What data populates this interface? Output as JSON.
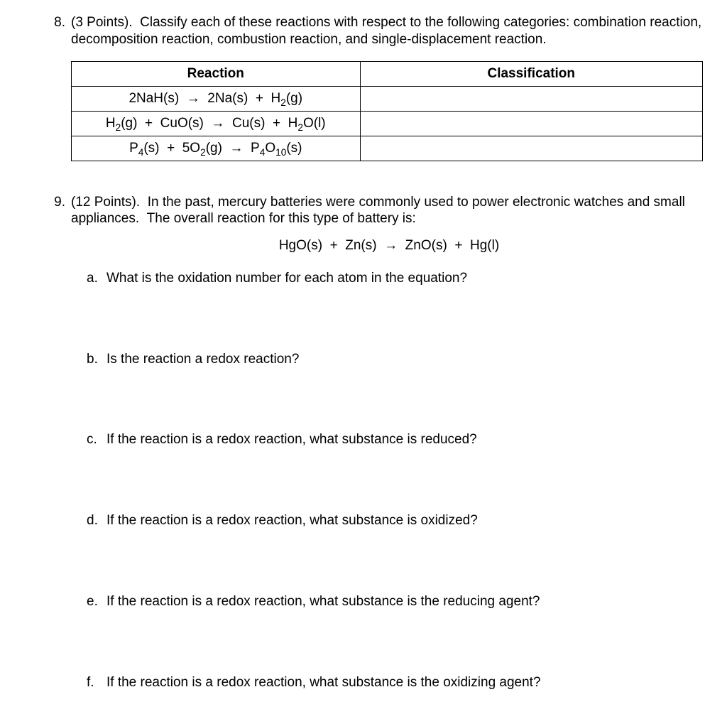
{
  "q8": {
    "number": "8.",
    "prompt": "(3 Points).  Classify each of these reactions with respect to the following categories: combination reaction, decomposition reaction, combustion reaction, and single-displacement reaction.",
    "table": {
      "header_reaction": "Reaction",
      "header_classification": "Classification",
      "rows": [
        {
          "reaction_html": "2NaH(s)  →  2Na(s)  +  H<sub>2</sub>(g)",
          "classification": ""
        },
        {
          "reaction_html": "H<sub>2</sub>(g)  +  CuO(s)  →  Cu(s)  +  H<sub>2</sub>O(l)",
          "classification": ""
        },
        {
          "reaction_html": "P<sub>4</sub>(s)  +  5O<sub>2</sub>(g)  →  P<sub>4</sub>O<sub>10</sub>(s)",
          "classification": ""
        }
      ]
    }
  },
  "q9": {
    "number": "9.",
    "prompt": "(12 Points).  In the past, mercury batteries were commonly used to power electronic watches and small appliances.  The overall reaction for this type of battery is:",
    "equation_html": "HgO(s)  +  Zn(s)  →  ZnO(s)  +  Hg(l)",
    "subparts": [
      {
        "letter": "a.",
        "text": "What is the oxidation number for each atom in the equation?"
      },
      {
        "letter": "b.",
        "text": "Is the reaction a redox reaction?"
      },
      {
        "letter": "c.",
        "text": "If the reaction is a redox reaction, what substance is reduced?"
      },
      {
        "letter": "d.",
        "text": "If the reaction is a redox reaction, what substance is oxidized?"
      },
      {
        "letter": "e.",
        "text": "If the reaction is a redox reaction, what substance is the reducing agent?"
      },
      {
        "letter": "f.",
        "text": "If the reaction is a redox reaction, what substance is the oxidizing agent?"
      }
    ]
  }
}
